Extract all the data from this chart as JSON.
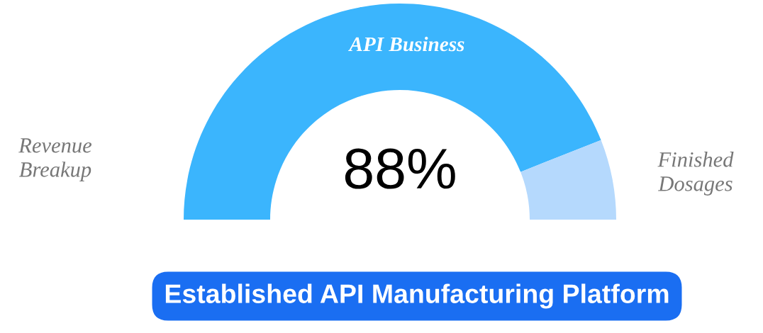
{
  "chart_data": {
    "type": "donut",
    "title": "Revenue Breakup",
    "subtitle": "Established API Manufacturing Platform",
    "categories": [
      "API Business",
      "Finished Dosages"
    ],
    "values": [
      88,
      12
    ],
    "colors": [
      "#3bb5fd",
      "#b5d9fd"
    ],
    "value_labels": [
      "88%",
      null
    ]
  }
}
